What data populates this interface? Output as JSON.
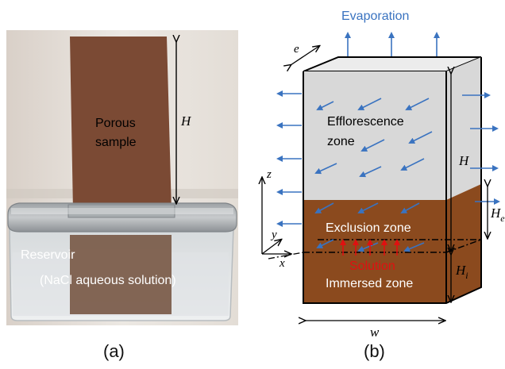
{
  "photo": {
    "sample_label_line1": "Porous",
    "sample_label_line2": "sample",
    "height_label": "H",
    "reservoir_label": "Reservoir",
    "solution_label": "(NaCl aqueous solution)",
    "panel_label": "(a)"
  },
  "schematic": {
    "evaporation_label": "Evaporation",
    "thickness_label": "e",
    "efflorescence_line1": "Efflorescence",
    "efflorescence_line2": "zone",
    "exclusion_label": "Exclusion zone",
    "solution_label": "Solution",
    "immersed_label": "Immersed zone",
    "height_label": "H",
    "he_label": "H",
    "he_sub": "e",
    "hi_label": "H",
    "hi_sub": "i",
    "width_label": "w",
    "axis_z": "z",
    "axis_y": "y",
    "axis_x": "x",
    "panel_label": "(b)"
  },
  "colors": {
    "sample_brown": "#7b4a34",
    "zone_brown": "#8b4a1e",
    "zone_gray": "#d8d8d8",
    "arrow_blue": "#3a73c0",
    "solution_red": "#e01010",
    "evaporation_blue": "#3a73c0"
  }
}
